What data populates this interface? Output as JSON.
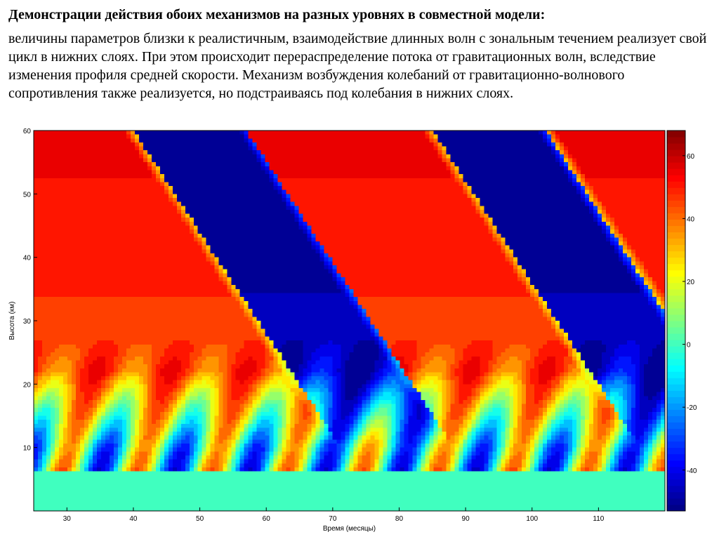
{
  "slide": {
    "title": "Демонстрации действия обоих механизмов  на разных уровнях в совместной модели:",
    "text": "величины параметров близки к реалистичным, взаимодействие длинных волн с зональным течением реализует свой цикл в нижних слоях. При этом происходит перераспределение потока от гравитационных волн, вследствие изменения профиля средней скорости. Механизм возбуждения колебаний от гравитационно-волнового сопротивления также реализуется, но подстраиваясь под колебания в нижних слоях."
  },
  "chart_data": {
    "type": "heatmap",
    "title": "",
    "xlabel": "Время (месяцы)",
    "ylabel": "Высота (км)",
    "xlim": [
      25,
      120
    ],
    "ylim": [
      0,
      60
    ],
    "x_ticks": [
      30,
      40,
      50,
      60,
      70,
      80,
      90,
      100,
      110
    ],
    "y_ticks": [
      10,
      20,
      30,
      40,
      50,
      60
    ],
    "colorbar": {
      "range": [
        -53,
        68
      ],
      "ticks": [
        -40,
        -20,
        0,
        20,
        40,
        60
      ],
      "colormap": "jet"
    },
    "lower_band": {
      "height_top": 6,
      "value": 0
    },
    "upper_layer": {
      "height_bottom": 10,
      "switch_times": [
        40,
        57,
        85,
        102
      ],
      "descent_rate_km_per_month": 1.6,
      "amplitude": 55,
      "edge_width_km": 2.5
    },
    "lower_layer": {
      "height_top": 14,
      "period_months": 11.3,
      "first_peak_month": 27,
      "amplitude": 45
    }
  }
}
